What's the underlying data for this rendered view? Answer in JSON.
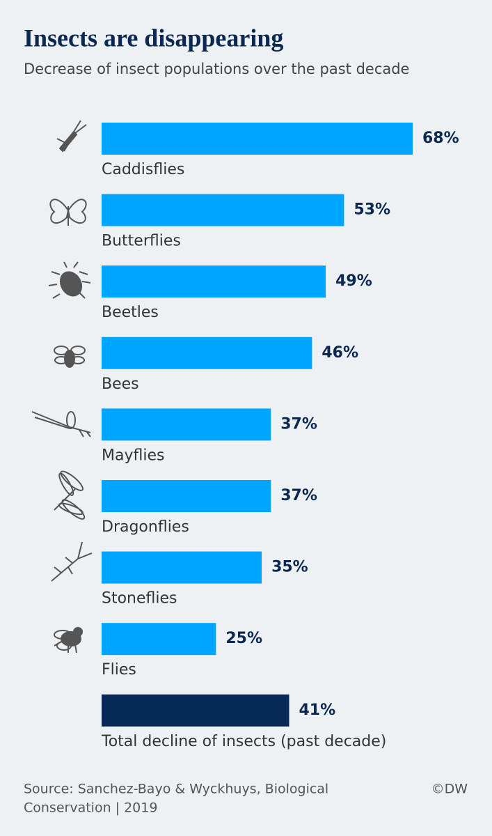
{
  "chart_data": {
    "type": "bar",
    "orientation": "horizontal",
    "title": "Insects are disappearing",
    "subtitle": "Decrease of insect populations over the past decade",
    "categories": [
      "Caddisflies",
      "Butterflies",
      "Beetles",
      "Bees",
      "Mayflies",
      "Dragonflies",
      "Stoneflies",
      "Flies",
      "Total decline of insects (past decade)"
    ],
    "values": [
      68,
      53,
      49,
      46,
      37,
      37,
      35,
      25,
      41
    ],
    "value_labels": [
      "68%",
      "53%",
      "49%",
      "46%",
      "37%",
      "37%",
      "35%",
      "25%",
      "41%"
    ],
    "colors": [
      "#00a5ff",
      "#00a5ff",
      "#00a5ff",
      "#00a5ff",
      "#00a5ff",
      "#00a5ff",
      "#00a5ff",
      "#00a5ff",
      "#062a55"
    ],
    "source": [
      "Source: Sanchez-Bayo & Wyckhuys, Biological",
      "Conservation | 2019"
    ],
    "credit": "©DW"
  }
}
